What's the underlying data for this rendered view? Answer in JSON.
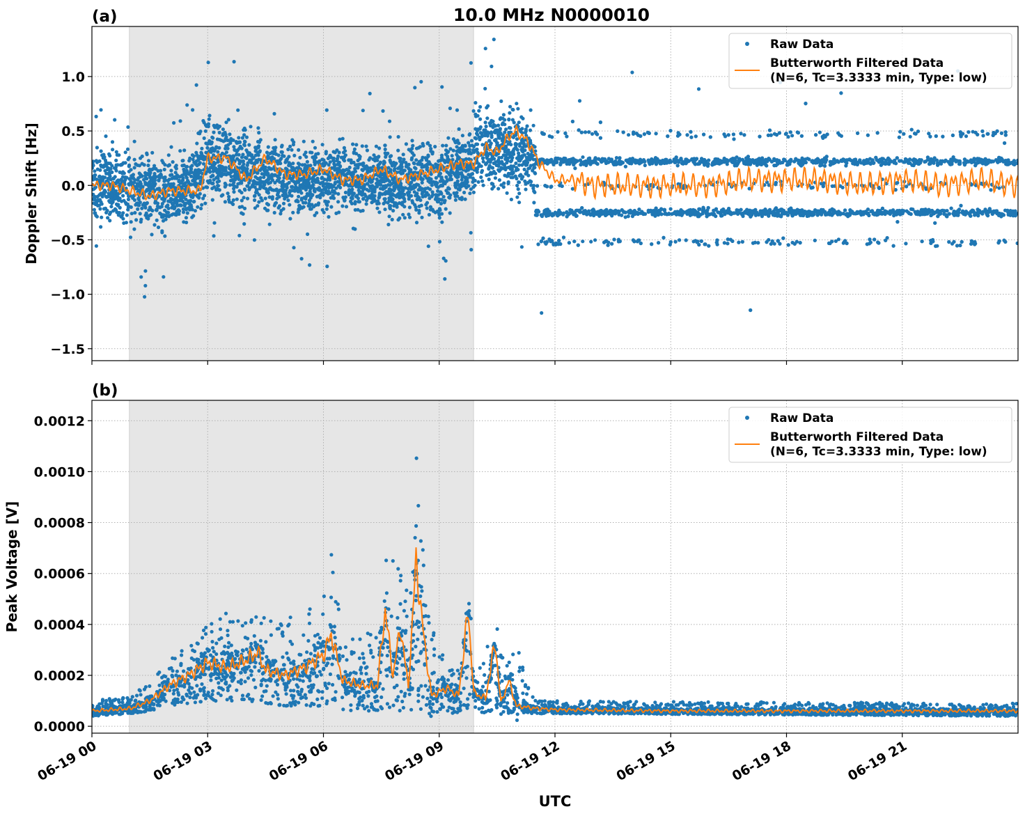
{
  "title": "10.0 MHz N0000010",
  "xlabel": "UTC",
  "x_ticks": [
    "06-19 00",
    "06-19 03",
    "06-19 06",
    "06-19 09",
    "06-19 12",
    "06-19 15",
    "06-19 18",
    "06-19 21"
  ],
  "x_tick_hours": [
    0,
    3,
    6,
    9,
    12,
    15,
    18,
    21
  ],
  "xlim_hours": [
    0,
    24
  ],
  "shaded_interval_hours": [
    0.97,
    9.89
  ],
  "colors": {
    "raw": "#1f77b4",
    "filtered": "#ff7f0e",
    "shade": "#e6e6e6",
    "grid": "#b0b0b0"
  },
  "legend": {
    "raw": "Raw Data",
    "filtered_line1": "Butterworth Filtered Data",
    "filtered_line2": "(N=6, Tc=3.3333 min, Type: low)",
    "placement": "upper-right"
  },
  "chart_data": [
    {
      "type": "scatter+line",
      "panel_label": "(a)",
      "ylabel": "Doppler Shift [Hz]",
      "ylim": [
        -1.61,
        1.46
      ],
      "y_ticks": [
        1.0,
        0.5,
        0.0,
        -0.5,
        -1.0,
        -1.5
      ],
      "y_tick_labels": [
        "1.0",
        "0.5",
        "0.0",
        "−0.5",
        "−1.0",
        "−1.5"
      ],
      "grid": true,
      "series": [
        {
          "name": "Raw Data",
          "kind": "scatter",
          "envelope": {
            "x": [
              0,
              1,
              2,
              2.5,
              3,
              4,
              5,
              6,
              7,
              8,
              9,
              9.8,
              10,
              11,
              11.5
            ],
            "lo": [
              -0.35,
              -0.5,
              -0.5,
              -0.45,
              -0.2,
              -0.35,
              -0.3,
              -0.35,
              -0.3,
              -0.4,
              -0.4,
              -0.2,
              -0.1,
              -0.2,
              -0.2
            ],
            "hi": [
              0.35,
              0.45,
              0.4,
              0.4,
              0.7,
              0.6,
              0.45,
              0.45,
              0.4,
              0.45,
              0.5,
              0.6,
              0.9,
              0.85,
              0.6
            ]
          },
          "bands_after_11_5h": [
            0.47,
            0.22,
            0.0,
            -0.25,
            -0.52
          ]
        },
        {
          "name": "Butterworth Filtered Data",
          "kind": "line",
          "x": [
            0,
            0.5,
            1,
            1.5,
            2,
            2.5,
            2.8,
            3,
            3.5,
            4,
            4.5,
            5,
            5.5,
            6,
            6.5,
            7,
            7.5,
            8,
            8.5,
            9,
            9.5,
            9.9,
            10.2,
            10.5,
            10.8,
            11,
            11.3,
            11.6,
            12,
            12.5,
            13,
            14,
            15,
            16,
            17,
            18,
            19,
            20,
            21,
            22,
            23,
            24
          ],
          "y": [
            0.0,
            0.0,
            -0.05,
            -0.1,
            -0.05,
            -0.05,
            -0.05,
            0.25,
            0.25,
            0.05,
            0.25,
            0.1,
            0.1,
            0.15,
            0.05,
            0.05,
            0.15,
            0.05,
            0.1,
            0.15,
            0.2,
            0.2,
            0.35,
            0.3,
            0.45,
            0.5,
            0.4,
            0.2,
            0.05,
            0.05,
            0.0,
            0.0,
            0.0,
            0.0,
            0.05,
            0.05,
            0.05,
            0.0,
            0.05,
            0.0,
            0.05,
            0.0
          ]
        }
      ]
    },
    {
      "type": "scatter+line",
      "panel_label": "(b)",
      "ylabel": "Peak Voltage [V]",
      "ylim": [
        -2.7e-05,
        0.00128
      ],
      "y_ticks": [
        0,
        0.0002,
        0.0004,
        0.0006,
        0.0008,
        0.001,
        0.0012
      ],
      "y_tick_labels": [
        "0.0000",
        "0.0002",
        "0.0004",
        "0.0006",
        "0.0008",
        "0.0010",
        "0.0012"
      ],
      "grid": true,
      "series": [
        {
          "name": "Raw Data",
          "kind": "scatter",
          "envelope": {
            "x": [
              0,
              1,
              1.5,
              2,
              2.5,
              3,
              3.5,
              4,
              4.5,
              5,
              5.5,
              6,
              6.2,
              6.5,
              7,
              7.5,
              7.6,
              8,
              8.3,
              8.4,
              8.7,
              9,
              9.5,
              9.75,
              10,
              10.45,
              10.7,
              11,
              11.5,
              12,
              24
            ],
            "lo": [
              4e-05,
              5e-05,
              6e-05,
              8e-05,
              9e-05,
              0.0001,
              0.0001,
              0.0001,
              9e-05,
              8e-05,
              8e-05,
              8e-05,
              0.0001,
              6e-05,
              6e-05,
              6e-05,
              8e-05,
              6e-05,
              6e-05,
              8e-05,
              5e-05,
              5e-05,
              5e-05,
              6e-05,
              5e-05,
              6e-05,
              5e-05,
              5e-05,
              5e-05,
              5e-05,
              4e-05
            ],
            "hi": [
              0.0001,
              0.00012,
              0.00018,
              0.00026,
              0.00033,
              0.0004,
              0.00045,
              0.00042,
              0.00044,
              0.00042,
              0.00045,
              0.0005,
              0.00068,
              0.00035,
              0.00035,
              0.0004,
              0.00085,
              0.0006,
              0.00055,
              0.0011,
              0.0005,
              0.0003,
              0.00025,
              0.00052,
              0.00022,
              0.00045,
              0.00025,
              0.00032,
              0.0001,
              0.0001,
              9e-05
            ]
          }
        },
        {
          "name": "Butterworth Filtered Data",
          "kind": "line",
          "x": [
            0,
            1,
            1.5,
            2,
            2.5,
            3,
            3.5,
            4,
            4.3,
            4.5,
            5,
            5.5,
            6,
            6.2,
            6.5,
            7,
            7.4,
            7.6,
            7.8,
            8.0,
            8.2,
            8.4,
            8.6,
            8.8,
            9.2,
            9.5,
            9.75,
            9.9,
            10.2,
            10.45,
            10.6,
            10.8,
            11,
            11.5,
            12,
            15,
            18,
            21,
            24
          ],
          "y": [
            6e-05,
            7e-05,
            0.0001,
            0.00016,
            0.0002,
            0.00025,
            0.00023,
            0.00026,
            0.00029,
            0.00022,
            0.0002,
            0.00023,
            0.00028,
            0.00036,
            0.00018,
            0.00016,
            0.00016,
            0.00046,
            0.0002,
            0.00039,
            0.00015,
            0.00065,
            0.00035,
            0.00012,
            0.00015,
            0.00012,
            0.00045,
            0.00013,
            0.00011,
            0.00033,
            9e-05,
            0.00018,
            8e-05,
            7e-05,
            6.5e-05,
            6e-05,
            6e-05,
            6e-05,
            6e-05
          ]
        }
      ]
    }
  ]
}
